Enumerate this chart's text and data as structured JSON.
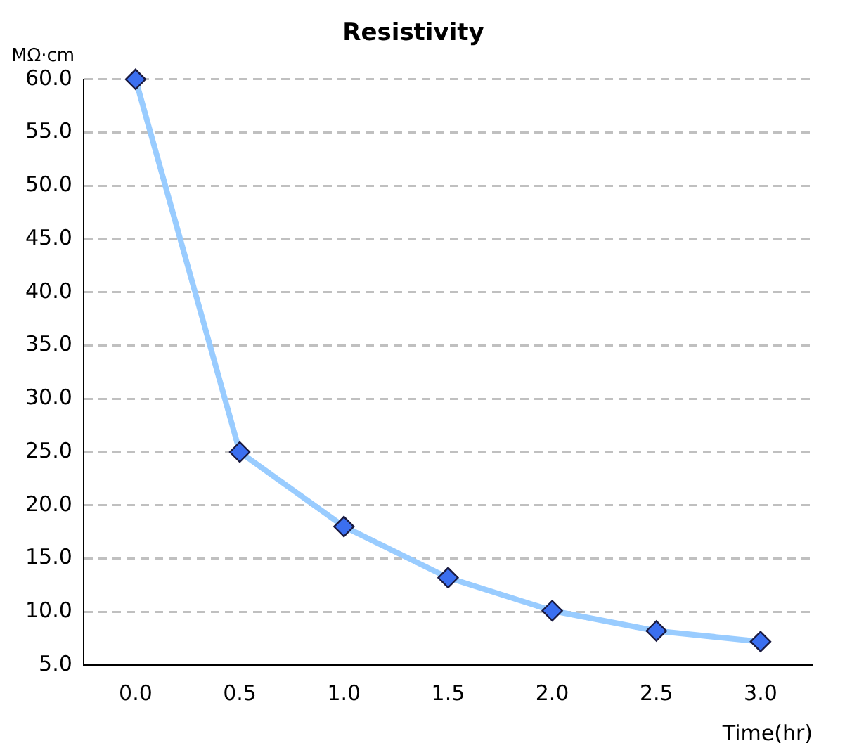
{
  "chart_data": {
    "type": "line",
    "title": "Resistivity",
    "xlabel": "Time(hr)",
    "ylabel": "MΩ·cm",
    "categories": [
      "0.0",
      "0.5",
      "1.0",
      "1.5",
      "2.0",
      "2.5",
      "3.0"
    ],
    "series": [
      {
        "color": "#99ccff",
        "values": [
          60,
          25,
          18,
          13.2,
          10.1,
          8.2,
          7.2
        ]
      }
    ],
    "ylim": [
      5,
      60
    ],
    "yticks": [
      {
        "value": 5,
        "label": "5.0"
      },
      {
        "value": 10,
        "label": "10.0"
      },
      {
        "value": 15,
        "label": "15.0"
      },
      {
        "value": 20,
        "label": "20.0"
      },
      {
        "value": 25,
        "label": "25.0"
      },
      {
        "value": 30,
        "label": "30.0"
      },
      {
        "value": 35,
        "label": "35.0"
      },
      {
        "value": 40,
        "label": "40.0"
      },
      {
        "value": 45,
        "label": "45.0"
      },
      {
        "value": 50,
        "label": "50.0"
      },
      {
        "value": 55,
        "label": "55.0"
      },
      {
        "value": 60,
        "label": "60.0"
      }
    ],
    "grid": "y",
    "legend": false,
    "marker": "diamond",
    "line_style": "solid"
  }
}
